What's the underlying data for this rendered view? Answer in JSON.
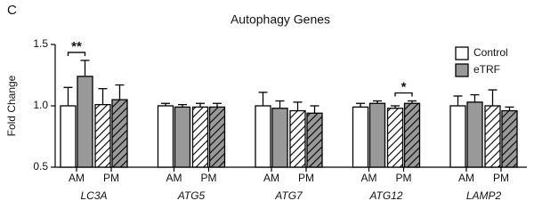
{
  "chart_data": {
    "type": "grouped-bar",
    "panel_label": "C",
    "title": "Autophagy Genes",
    "y_label": "Fold Change",
    "categories": [
      "LC3A",
      "ATG5",
      "ATG7",
      "ATG12",
      "LAMP2"
    ],
    "subgroups": [
      "AM",
      "PM"
    ],
    "subgroup_hatch": [
      false,
      true
    ],
    "series": [
      {
        "name": "Control",
        "color": "#ffffff",
        "values": [
          [
            1.0,
            1.01
          ],
          [
            1.0,
            0.99
          ],
          [
            1.0,
            0.96
          ],
          [
            0.99,
            0.98
          ],
          [
            1.0,
            1.0
          ]
        ],
        "errors": [
          [
            0.15,
            0.13
          ],
          [
            0.02,
            0.03
          ],
          [
            0.11,
            0.07
          ],
          [
            0.03,
            0.02
          ],
          [
            0.08,
            0.13
          ]
        ]
      },
      {
        "name": "eTRF",
        "color": "#999999",
        "values": [
          [
            1.24,
            1.05
          ],
          [
            0.99,
            0.99
          ],
          [
            0.98,
            0.94
          ],
          [
            1.02,
            1.02
          ],
          [
            1.03,
            0.96
          ]
        ],
        "errors": [
          [
            0.13,
            0.12
          ],
          [
            0.02,
            0.03
          ],
          [
            0.06,
            0.06
          ],
          [
            0.02,
            0.02
          ],
          [
            0.06,
            0.03
          ]
        ]
      }
    ],
    "annotations": [
      {
        "text": "**",
        "category": 0,
        "subgroup": 0
      },
      {
        "text": "*",
        "category": 3,
        "subgroup": 1
      }
    ],
    "ylim": [
      0.5,
      1.5
    ],
    "yticks": [
      0.5,
      {
        "value": 1,
        "label": "1.0"
      },
      1.5
    ],
    "legend": "top-right"
  }
}
